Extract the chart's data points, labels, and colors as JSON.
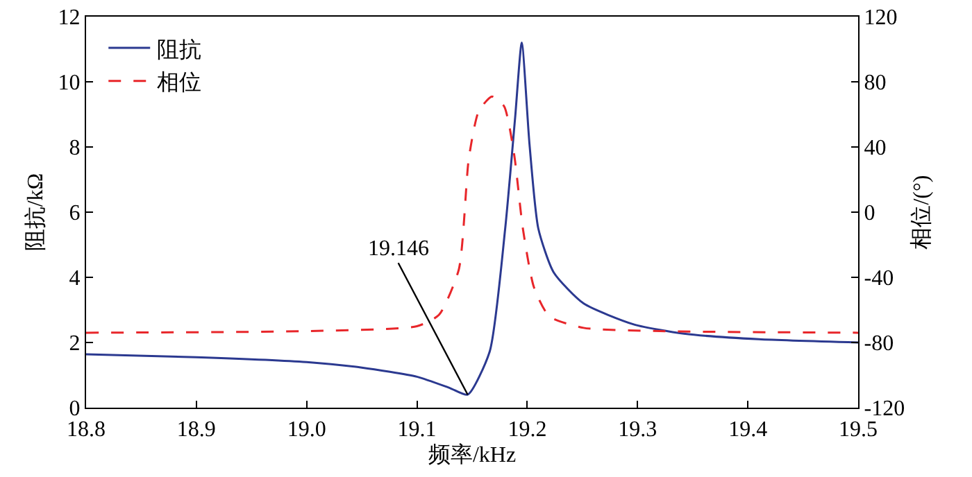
{
  "chart_data": {
    "type": "line",
    "xlabel": "频率/kHz",
    "ylabel": "阻抗/kΩ",
    "y2label": "相位/(°)",
    "xlim": [
      18.8,
      19.5
    ],
    "xticks": [
      {
        "value": 18.8,
        "label": "18.8"
      },
      {
        "value": 18.9,
        "label": "18.9"
      },
      {
        "value": 19.0,
        "label": "19.0"
      },
      {
        "value": 19.1,
        "label": "19.1"
      },
      {
        "value": 19.2,
        "label": "19.2"
      },
      {
        "value": 19.3,
        "label": "19.3"
      },
      {
        "value": 19.4,
        "label": "19.4"
      },
      {
        "value": 19.5,
        "label": "19.5"
      }
    ],
    "ylim": [
      0,
      12
    ],
    "yticks": [
      0,
      2,
      4,
      6,
      8,
      10,
      12
    ],
    "y2lim": [
      -120,
      120
    ],
    "y2ticks": [
      -120,
      -80,
      -40,
      0,
      40,
      80,
      120
    ],
    "grid": false,
    "legend": "top left",
    "series": [
      {
        "name": "阻抗",
        "color": "#2b3990",
        "line_style": "solid",
        "x": [
          18.8,
          18.9,
          19.0,
          19.05,
          19.1,
          19.13,
          19.146,
          19.166,
          19.18,
          19.189,
          19.195,
          19.202,
          19.21,
          19.224,
          19.251,
          19.297,
          19.342,
          19.41,
          19.5
        ],
        "values": [
          1.64,
          1.55,
          1.4,
          1.23,
          0.95,
          0.6,
          0.4,
          1.73,
          5.5,
          8.9,
          11.2,
          8.1,
          5.5,
          4.15,
          3.2,
          2.55,
          2.27,
          2.1,
          2.0
        ]
      },
      {
        "name": "相位",
        "color": "#e8262a",
        "line_style": "dashed",
        "axis": "y2",
        "x": [
          18.8,
          19.0,
          19.1,
          19.12,
          19.138,
          19.147,
          19.156,
          19.168,
          19.179,
          19.188,
          19.196,
          19.206,
          19.22,
          19.251,
          19.32,
          19.5
        ],
        "values": [
          -74,
          -73,
          -70,
          -63,
          -35,
          33,
          62,
          71,
          65,
          36,
          -10,
          -46,
          -64,
          -71,
          -73,
          -74
        ]
      }
    ],
    "annotations": [
      {
        "text": "19.146",
        "x": 19.146,
        "y": 0.4
      }
    ]
  }
}
